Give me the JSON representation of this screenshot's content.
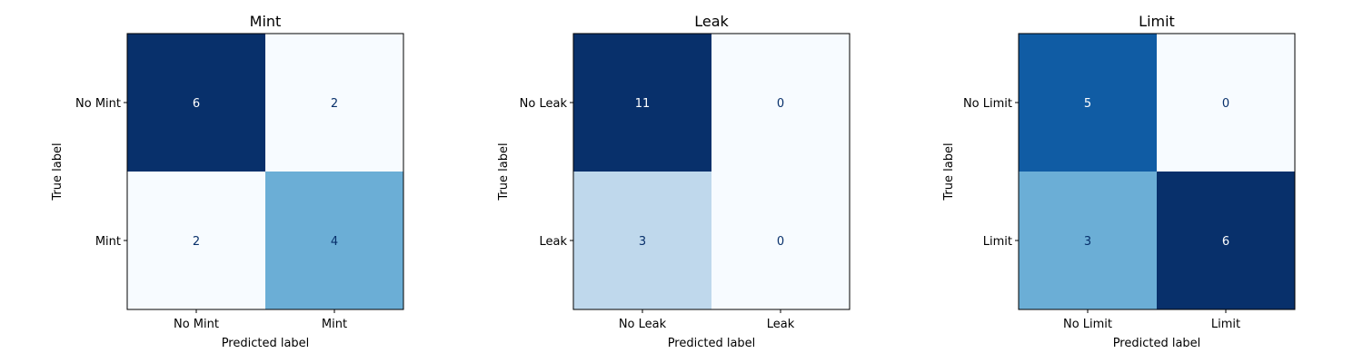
{
  "chart_data": [
    {
      "type": "heatmap",
      "title": "Mint",
      "xlabel": "Predicted label",
      "ylabel": "True label",
      "x_categories": [
        "No Mint",
        "Mint"
      ],
      "y_categories": [
        "No Mint",
        "Mint"
      ],
      "values": [
        [
          6,
          2
        ],
        [
          2,
          4
        ]
      ],
      "colormap": "Blues",
      "value_range": [
        2,
        6
      ]
    },
    {
      "type": "heatmap",
      "title": "Leak",
      "xlabel": "Predicted label",
      "ylabel": "True label",
      "x_categories": [
        "No Leak",
        "Leak"
      ],
      "y_categories": [
        "No Leak",
        "Leak"
      ],
      "values": [
        [
          11,
          0
        ],
        [
          3,
          0
        ]
      ],
      "colormap": "Blues",
      "value_range": [
        0,
        11
      ]
    },
    {
      "type": "heatmap",
      "title": "Limit",
      "xlabel": "Predicted label",
      "ylabel": "True label",
      "x_categories": [
        "No Limit",
        "Limit"
      ],
      "y_categories": [
        "No Limit",
        "Limit"
      ],
      "values": [
        [
          5,
          0
        ],
        [
          3,
          6
        ]
      ],
      "colormap": "Blues",
      "value_range": [
        0,
        6
      ]
    }
  ]
}
